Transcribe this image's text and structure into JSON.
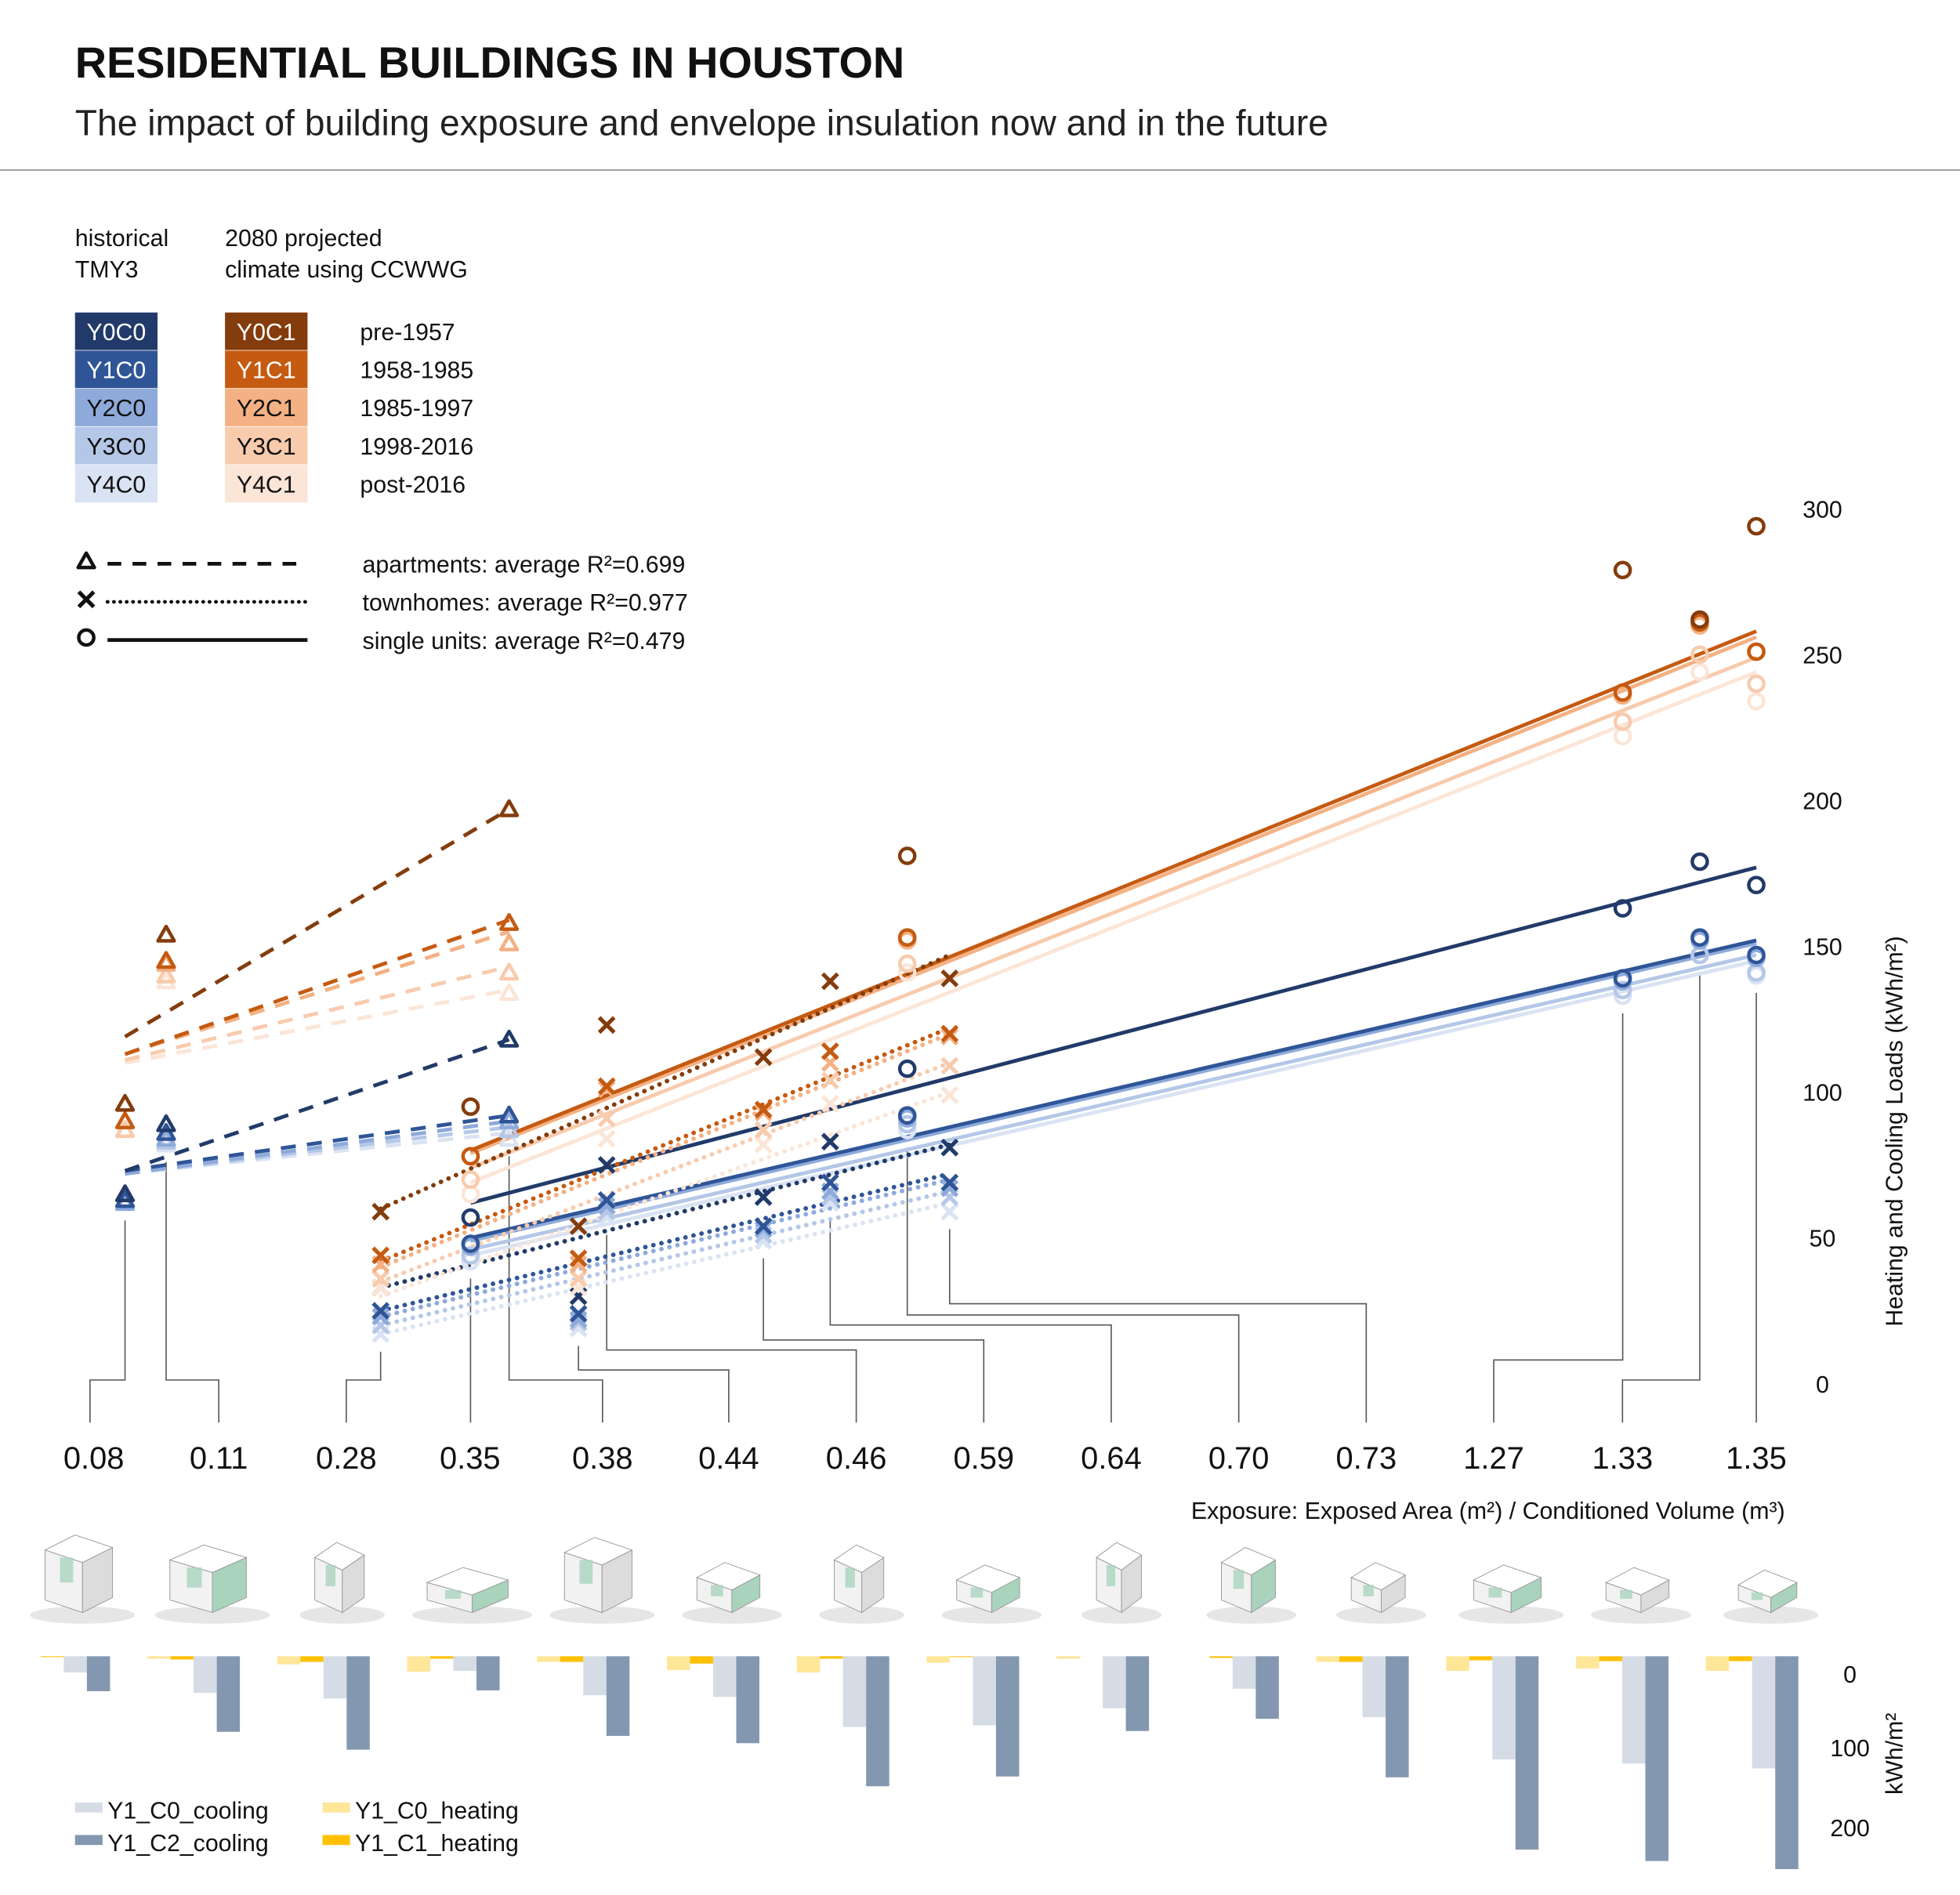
{
  "header": {
    "title": "RESIDENTIAL BUILDINGS IN HOUSTON",
    "subtitle": "The impact of building exposure and envelope insulation now and in the future"
  },
  "legend": {
    "historical": [
      "historical",
      "TMY3"
    ],
    "projected": [
      "2080 projected",
      "climate using CCWWG"
    ],
    "swatches_c0": [
      {
        "code": "Y0C0",
        "color": "#213a69",
        "text_color": "#ffffff"
      },
      {
        "code": "Y1C0",
        "color": "#2f5597",
        "text_color": "#ffffff"
      },
      {
        "code": "Y2C0",
        "color": "#8eaadb",
        "text_color": "#111111"
      },
      {
        "code": "Y3C0",
        "color": "#b4c7e7",
        "text_color": "#111111"
      },
      {
        "code": "Y4C0",
        "color": "#dae3f3",
        "text_color": "#111111"
      }
    ],
    "swatches_c1": [
      {
        "code": "Y0C1",
        "color": "#843c0c",
        "text_color": "#ffffff"
      },
      {
        "code": "Y1C1",
        "color": "#c55a11",
        "text_color": "#ffffff"
      },
      {
        "code": "Y2C1",
        "color": "#f4b183",
        "text_color": "#111111"
      },
      {
        "code": "Y3C1",
        "color": "#f8cbad",
        "text_color": "#111111"
      },
      {
        "code": "Y4C1",
        "color": "#fbe5d6",
        "text_color": "#111111"
      }
    ],
    "periods": [
      "pre-1957",
      "1958-1985",
      "1985-1997",
      "1998-2016",
      "post-2016"
    ],
    "types": [
      {
        "marker": "triangle-icon",
        "line": "dashed",
        "label": "apartments: average R²=0.699"
      },
      {
        "marker": "x-icon",
        "line": "dotted",
        "label": "townhomes: average R²=0.977"
      },
      {
        "marker": "circle-icon",
        "line": "solid",
        "label": "single units: average R²=0.479"
      }
    ]
  },
  "chart_data": [
    {
      "type": "scatter",
      "ylabel": "Heating and Cooling Loads (kWh/m²)",
      "xlabel": "Exposure: Exposed Area (m²) / Conditioned Volume (m³)",
      "ylim": [
        0,
        300
      ],
      "yticks": [
        "0",
        "50",
        "100",
        "150",
        "200",
        "250",
        "300"
      ],
      "x_tick_labels": [
        "0.08",
        "0.11",
        "0.28",
        "0.35",
        "0.38",
        "0.44",
        "0.46",
        "0.59",
        "0.64",
        "0.70",
        "0.73",
        "1.27",
        "1.33",
        "1.35"
      ],
      "exposures": {
        "apartments": [
          0.08,
          0.112,
          0.379
        ],
        "townhomes": [
          0.279,
          0.433,
          0.455,
          0.577,
          0.629,
          0.722
        ],
        "singles": [
          0.349,
          0.689,
          1.246,
          1.306,
          1.35
        ]
      },
      "series": [
        {
          "name": "Y0C0",
          "color": "#213a69",
          "apartments": [
            65,
            89,
            118
          ],
          "townhomes": [
            33,
            30,
            75,
            64,
            83,
            81
          ],
          "singles": [
            57,
            108,
            163,
            179,
            171
          ],
          "trend": {
            "apartments": [
              73,
              118
            ],
            "townhomes": [
              33,
              82
            ],
            "singles": [
              62,
              177
            ]
          }
        },
        {
          "name": "Y1C0",
          "color": "#2f5597",
          "apartments": [
            63,
            86,
            92
          ],
          "townhomes": [
            25,
            24,
            63,
            54,
            69,
            69
          ],
          "singles": [
            48,
            92,
            139,
            153,
            147
          ],
          "trend": {
            "apartments": [
              73,
              92
            ],
            "townhomes": [
              25,
              72
            ],
            "singles": [
              50,
              152
            ]
          }
        },
        {
          "name": "Y2C0",
          "color": "#8eaadb",
          "apartments": [
            62,
            84,
            90
          ],
          "townhomes": [
            23,
            22,
            61,
            53,
            66,
            67
          ],
          "singles": [
            47,
            91,
            138,
            152,
            146
          ],
          "trend": {
            "apartments": [
              72,
              90
            ],
            "townhomes": [
              23,
              70
            ],
            "singles": [
              49,
              151
            ]
          }
        },
        {
          "name": "Y3C0",
          "color": "#b4c7e7",
          "apartments": [
            63,
            83,
            87
          ],
          "townhomes": [
            20,
            21,
            59,
            51,
            64,
            64
          ],
          "singles": [
            44,
            89,
            135,
            147,
            141
          ],
          "trend": {
            "apartments": [
              72,
              88
            ],
            "townhomes": [
              20,
              66
            ],
            "singles": [
              46,
              147
            ]
          }
        },
        {
          "name": "Y4C0",
          "color": "#dae3f3",
          "apartments": [
            65,
            82,
            84
          ],
          "townhomes": [
            17,
            19,
            57,
            49,
            62,
            59
          ],
          "singles": [
            42,
            87,
            133,
            147,
            140
          ],
          "trend": {
            "apartments": [
              72,
              86
            ],
            "townhomes": [
              17,
              62
            ],
            "singles": [
              44,
              145
            ]
          }
        },
        {
          "name": "Y0C1",
          "color": "#843c0c",
          "apartments": [
            96,
            154,
            197
          ],
          "townhomes": [
            59,
            54,
            123,
            112,
            138,
            139
          ],
          "singles": [
            95,
            181,
            279,
            262,
            294
          ],
          "trend": {
            "apartments": [
              119,
              197
            ],
            "townhomes": [
              60,
              147
            ],
            "singles": null
          }
        },
        {
          "name": "Y1C1",
          "color": "#c55a11",
          "apartments": [
            90,
            145,
            158
          ],
          "townhomes": [
            44,
            43,
            102,
            94,
            114,
            120
          ],
          "singles": [
            78,
            153,
            237,
            261,
            251
          ],
          "trend": {
            "apartments": [
              113,
              159
            ],
            "townhomes": [
              42,
              122
            ],
            "singles": [
              80,
              258
            ]
          }
        },
        {
          "name": "Y2C1",
          "color": "#f4b183",
          "apartments": [
            90,
            144,
            151
          ],
          "townhomes": [
            41,
            41,
            101,
            93,
            110,
            119
          ],
          "singles": [
            78,
            152,
            236,
            260,
            251
          ],
          "trend": {
            "apartments": [
              113,
              155
            ],
            "townhomes": [
              40,
              120
            ],
            "singles": [
              79,
              256
            ]
          }
        },
        {
          "name": "Y3C1",
          "color": "#f8cbad",
          "apartments": [
            87,
            140,
            141
          ],
          "townhomes": [
            36,
            36,
            91,
            87,
            104,
            109
          ],
          "singles": [
            70,
            144,
            227,
            250,
            240
          ],
          "trend": {
            "apartments": [
              111,
              143
            ],
            "townhomes": [
              35,
              110
            ],
            "singles": [
              74,
              249
            ]
          }
        },
        {
          "name": "Y4C1",
          "color": "#fbe5d6",
          "apartments": [
            87,
            138,
            134
          ],
          "townhomes": [
            33,
            33,
            84,
            82,
            96,
            99
          ],
          "singles": [
            65,
            141,
            222,
            244,
            234
          ],
          "trend": {
            "apartments": [
              110,
              135
            ],
            "townhomes": [
              30,
              100
            ],
            "singles": [
              69,
              244
            ]
          }
        }
      ]
    },
    {
      "type": "bar",
      "ylabel": "kWh/m²",
      "yticks": [
        "0",
        "100",
        "200"
      ],
      "ylim": [
        0,
        270
      ],
      "orientation": "downward",
      "categories_count": 14,
      "series": [
        {
          "name": "Y1_C0_heating",
          "color": "#ffe699",
          "values": [
            0,
            3,
            10,
            19,
            7,
            17,
            20,
            8,
            3,
            0,
            7,
            18,
            15,
            18
          ]
        },
        {
          "name": "Y1_C1_heating",
          "color": "#ffc000",
          "values": [
            1,
            4,
            7,
            3,
            7,
            9,
            3,
            1,
            0,
            2,
            7,
            5,
            6,
            6
          ]
        },
        {
          "name": "Y1_C0_cooling",
          "color": "#d6dce5",
          "values": [
            20,
            45,
            52,
            18,
            48,
            50,
            87,
            85,
            64,
            40,
            75,
            127,
            132,
            138
          ]
        },
        {
          "name": "Y1_C2_cooling",
          "color": "#8497b0",
          "values": [
            43,
            93,
            115,
            42,
            98,
            107,
            160,
            148,
            92,
            77,
            149,
            238,
            252,
            262
          ]
        }
      ],
      "legend": [
        "Y1_C0_cooling",
        "Y1_C2_cooling",
        "Y1_C0_heating",
        "Y1_C1_heating"
      ]
    }
  ]
}
